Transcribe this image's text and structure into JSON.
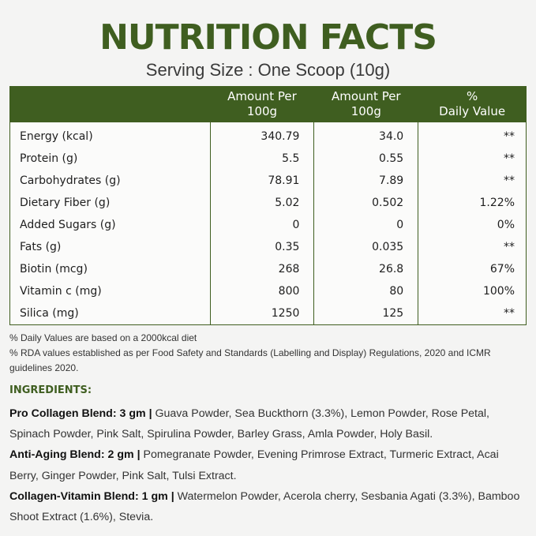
{
  "title": "NUTRITION FACTS",
  "serving": "Serving Size : One Scoop (10g)",
  "table": {
    "headers": [
      "",
      "Amount Per\n100g",
      "Amount Per\n100g",
      "%\nDaily Value"
    ],
    "rows": [
      [
        "Energy (kcal)",
        "340.79",
        "34.0",
        "**"
      ],
      [
        "Protein (g)",
        "5.5",
        "0.55",
        "**"
      ],
      [
        "Carbohydrates (g)",
        "78.91",
        "7.89",
        "**"
      ],
      [
        "Dietary Fiber (g)",
        "5.02",
        "0.502",
        "1.22%"
      ],
      [
        "Added Sugars (g)",
        "0",
        "0",
        "0%"
      ],
      [
        "Fats (g)",
        "0.35",
        "0.035",
        "**"
      ],
      [
        "Biotin (mcg)",
        "268",
        "26.8",
        "67%"
      ],
      [
        "Vitamin c (mg)",
        "800",
        "80",
        "100%"
      ],
      [
        "Silica (mg)",
        "1250",
        "125",
        "**"
      ]
    ]
  },
  "notes": [
    "% Daily Values are based on a 2000kcal diet",
    "% RDA values established as per Food Safety and Standards (Labelling and Display) Regulations, 2020 and ICMR guidelines 2020."
  ],
  "ingredients": {
    "heading": "INGREDIENTS:",
    "blends": [
      {
        "name": "Pro Collagen Blend: 3 gm |",
        "items": " Guava Powder, Sea Buckthorn (3.3%), Lemon Powder, Rose Petal, Spinach Powder, Pink Salt, Spirulina Powder, Barley Grass, Amla Powder, Holy Basil."
      },
      {
        "name": "Anti-Aging Blend: 2 gm |",
        "items": " Pomegranate Powder, Evening Primrose Extract, Turmeric Extract, Acai Berry, Ginger Powder, Pink Salt, Tulsi Extract."
      },
      {
        "name": "Collagen-Vitamin Blend: 1 gm |",
        "items": " Watermelon Powder, Acerola cherry, Sesbania Agati (3.3%), Bamboo Shoot Extract (1.6%), Stevia."
      }
    ]
  },
  "colors": {
    "accent": "#3f5e20",
    "background": "#f4f4f3"
  }
}
